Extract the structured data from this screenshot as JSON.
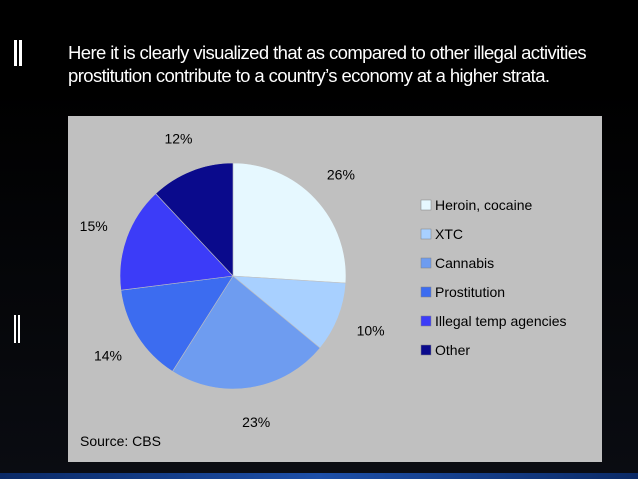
{
  "slide": {
    "title": "Here it is clearly visualized that as compared to other illegal activities prostitution contribute to a country’s economy at a higher strata."
  },
  "chart_data": {
    "type": "pie",
    "categories": [
      "Heroin, cocaine",
      "XTC",
      "Cannabis",
      "Prostitution",
      "Illegal temp agencies",
      "Other"
    ],
    "values": [
      26,
      10,
      23,
      14,
      15,
      12
    ],
    "labels": [
      "26%",
      "10%",
      "23%",
      "14%",
      "15%",
      "12%"
    ],
    "colors": [
      "#e6f8ff",
      "#a8d0ff",
      "#6e9cf0",
      "#3c6cf0",
      "#3c3cf8",
      "#0a0a8c"
    ],
    "legend_position": "right",
    "source": "Source: CBS",
    "background": "#c0c0c0"
  }
}
